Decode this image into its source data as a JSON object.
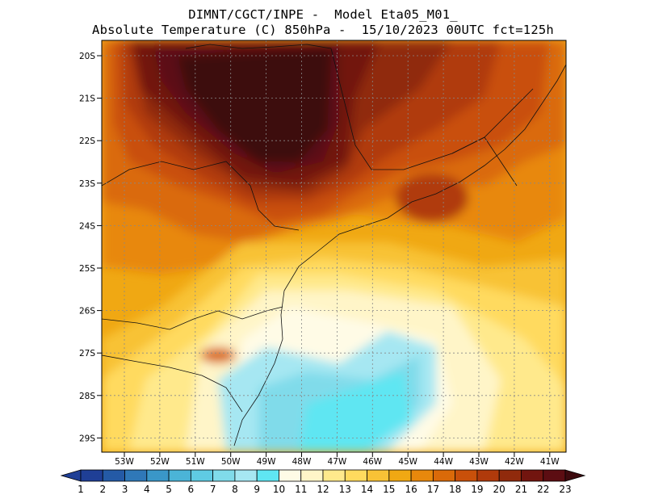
{
  "title": {
    "line1": "DIMNT/CGCT/INPE -  Model Eta05_M01_",
    "line2": "Absolute Temperature (C) 850hPa -  15/10/2023 00UTC fct=125h"
  },
  "map": {
    "lat_labels": [
      "20S",
      "21S",
      "22S",
      "23S",
      "24S",
      "25S",
      "26S",
      "27S",
      "28S",
      "29S"
    ],
    "lon_labels": [
      "53W",
      "52W",
      "51W",
      "50W",
      "49W",
      "48W",
      "47W",
      "46W",
      "45W",
      "44W",
      "43W",
      "42W",
      "41W"
    ],
    "grid": "dotted"
  },
  "colorbar": {
    "labels": [
      "1",
      "2",
      "3",
      "4",
      "5",
      "6",
      "7",
      "8",
      "9",
      "10",
      "11",
      "12",
      "13",
      "14",
      "15",
      "16",
      "17",
      "18",
      "19",
      "20",
      "21",
      "22",
      "23"
    ],
    "colors": [
      "#1f3f96",
      "#1f3f96",
      "#245aa6",
      "#2f78b8",
      "#3a97c8",
      "#4bb4d7",
      "#5fcbe3",
      "#80dbea",
      "#a6e7f2",
      "#5fe6f2",
      "#fffbe6",
      "#fff5c8",
      "#ffe98c",
      "#ffda5e",
      "#f8c236",
      "#f0a813",
      "#e8880c",
      "#da6a09",
      "#c9500a",
      "#b03a0b",
      "#902a0c",
      "#72150f",
      "#5c0d12",
      "#3d0a0e"
    ]
  }
}
